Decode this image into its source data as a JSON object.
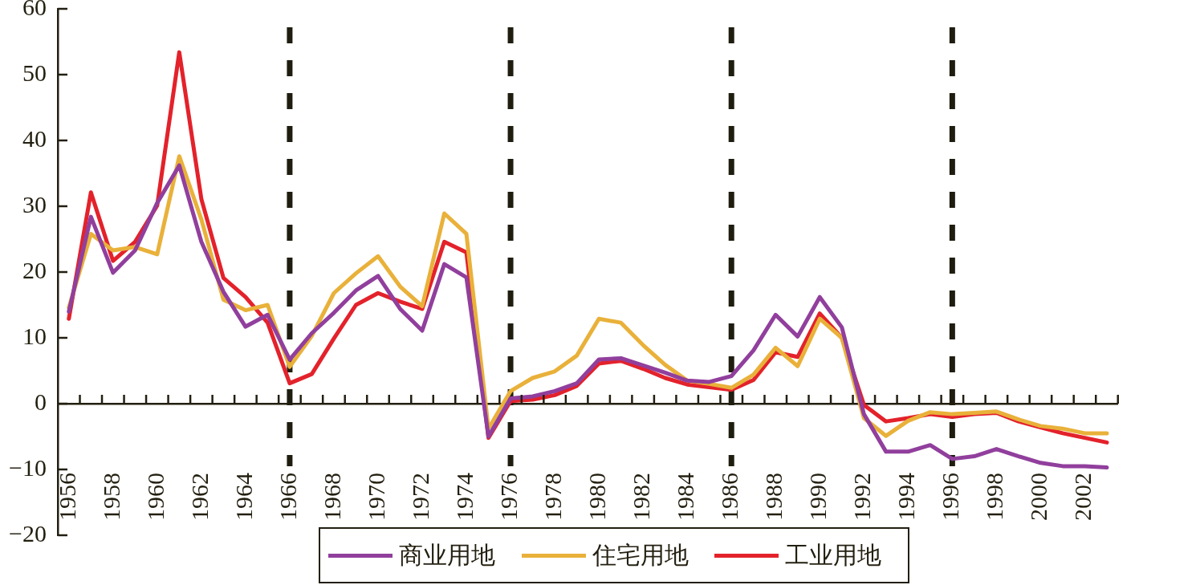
{
  "chart_data": {
    "type": "line",
    "categories": [
      "1956",
      null,
      "1958",
      null,
      "1960",
      null,
      "1962",
      null,
      "1964",
      null,
      "1966",
      null,
      "1968",
      null,
      "1970",
      null,
      "1972",
      null,
      "1974",
      null,
      "1976",
      null,
      "1978",
      null,
      "1980",
      null,
      "1982",
      null,
      "1984",
      null,
      "1986",
      null,
      "1988",
      null,
      "1990",
      null,
      "1992",
      null,
      "1994",
      null,
      "1996",
      null,
      "1998",
      null,
      "2000",
      null,
      "2002",
      null
    ],
    "ylim": [
      -20,
      60
    ],
    "yticks": [
      {
        "value": -20,
        "label": "−20"
      },
      {
        "value": -10,
        "label": "−10"
      },
      0,
      10,
      20,
      30,
      40,
      50,
      60
    ],
    "series": [
      {
        "name": "商业用地",
        "color": "#913f9d",
        "values": [
          14,
          28.4,
          19.9,
          23.3,
          30.5,
          36.2,
          24.6,
          17,
          11.7,
          13.5,
          6.7,
          10.7,
          13.8,
          17.2,
          19.4,
          14.4,
          11.1,
          21.2,
          19.2,
          -5,
          0.8,
          1.1,
          1.9,
          3.1,
          6.7,
          6.9,
          5.8,
          4.7,
          3.5,
          3.3,
          4.2,
          8.1,
          13.5,
          10.2,
          16.2,
          11.6,
          -1.6,
          -7.3,
          -7.3,
          -6.3,
          -8.4,
          -8,
          -6.9,
          -8,
          -9,
          -9.5,
          -9.5,
          -9.7
        ]
      },
      {
        "name": "住宅用地",
        "color": "#e9b13a",
        "values": [
          14.6,
          25.8,
          23.3,
          23.8,
          22.7,
          37.6,
          28,
          15.8,
          14.2,
          15,
          5.6,
          10.3,
          16.8,
          19.8,
          22.4,
          17.8,
          14.8,
          28.9,
          25.8,
          -3.8,
          1.9,
          3.9,
          4.9,
          7.3,
          12.9,
          12.3,
          8.9,
          5.9,
          3.5,
          3,
          2.4,
          4.4,
          8.5,
          5.7,
          12.9,
          10,
          -2.2,
          -4.9,
          -2.6,
          -1.3,
          -1.6,
          -1.4,
          -1.2,
          -2.4,
          -3.4,
          -3.8,
          -4.5,
          -4.5
        ]
      },
      {
        "name": "工业用地",
        "color": "#e3222b",
        "values": [
          12.9,
          32.1,
          21.7,
          24.6,
          30.1,
          53.4,
          31.1,
          19.1,
          16.2,
          12.3,
          3.1,
          4.5,
          9.9,
          15,
          16.8,
          15.5,
          14.4,
          24.6,
          23,
          -5.2,
          0.4,
          0.6,
          1.3,
          2.7,
          6.1,
          6.5,
          5.3,
          3.9,
          2.9,
          2.5,
          2.1,
          3.6,
          7.8,
          7.1,
          13.7,
          10,
          -0.2,
          -2.7,
          -2.2,
          -1.6,
          -2,
          -1.6,
          -1.4,
          -2.7,
          -3.6,
          -4.5,
          -5.2,
          -5.9
        ]
      }
    ],
    "ref_lines": [
      {
        "axis": "x",
        "value": "1966",
        "color": "#1f1d0f",
        "line_style": "dashed"
      },
      {
        "axis": "x",
        "value": "1976",
        "color": "#1f1d0f",
        "line_style": "dashed"
      },
      {
        "axis": "x",
        "value": "1986",
        "color": "#1f1d0f",
        "line_style": "dashed"
      },
      {
        "axis": "x",
        "value": "1996",
        "color": "#1f1d0f",
        "line_style": "dashed"
      }
    ],
    "legend": "bottom"
  }
}
